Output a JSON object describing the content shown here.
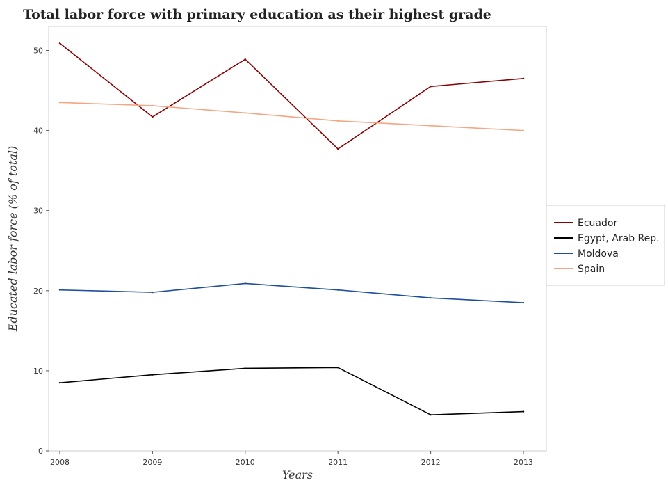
{
  "chart_data": {
    "type": "line",
    "title": "Total labor force with primary education as their highest grade",
    "xlabel": "Years",
    "ylabel": "Educated labor force (% of total)",
    "categories": [
      "2008",
      "2009",
      "2010",
      "2011",
      "2012",
      "2013"
    ],
    "ylim": [
      0,
      53
    ],
    "yticks": [
      0,
      10,
      20,
      30,
      40,
      50
    ],
    "grid": false,
    "legend_position": "right",
    "series": [
      {
        "name": "Ecuador",
        "color": "#8b0000",
        "values": [
          50.9,
          41.7,
          48.9,
          37.7,
          45.5,
          46.5
        ]
      },
      {
        "name": "Egypt, Arab Rep.",
        "color": "#000000",
        "values": [
          8.5,
          9.5,
          10.3,
          10.4,
          4.5,
          4.9
        ]
      },
      {
        "name": "Moldova",
        "color": "#1f4e9c",
        "values": [
          20.1,
          19.8,
          20.9,
          20.1,
          19.1,
          18.5
        ]
      },
      {
        "name": "Spain",
        "color": "#f4a582",
        "values": [
          43.5,
          43.1,
          42.2,
          41.2,
          40.6,
          40.0
        ]
      }
    ]
  }
}
